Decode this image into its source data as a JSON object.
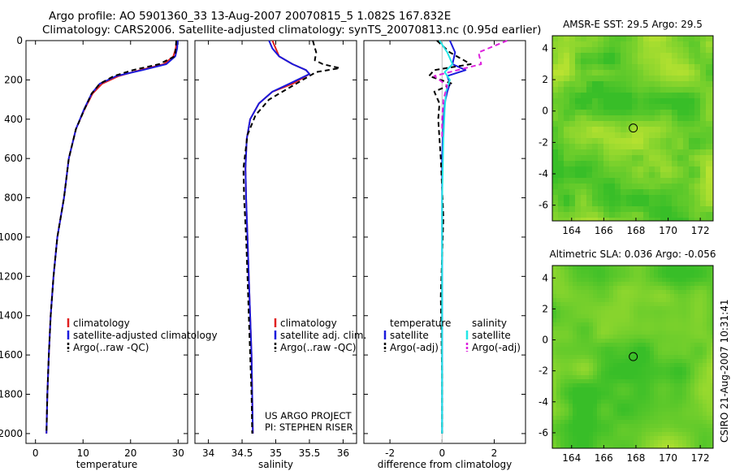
{
  "header": {
    "line1": "Argo profile: AO 5901360_33 13-Aug-2007 20070815_5 1.082S 167.832E",
    "line2": "Climatology: CARS2006. Satellite-adjusted climatology: synTS_20070813.nc (0.95d earlier)"
  },
  "footer": {
    "credit": "CSIRO 21-Aug-2007 10:31:41"
  },
  "colors": {
    "climatology": "#e02020",
    "satellite": "#1a1adc",
    "argo": "#000000",
    "salinity_satellite": "#22e6e6",
    "salinity_argo": "#dd22dd",
    "map_base": "#4fcf2e"
  },
  "chart_data": [
    {
      "type": "line",
      "id": "temperature",
      "xlabel": "temperature",
      "ylabel": "",
      "xlim": [
        -2,
        32
      ],
      "ylim": [
        2050,
        0
      ],
      "xticks": [
        0,
        10,
        20,
        30
      ],
      "yticks": [
        0,
        200,
        400,
        600,
        800,
        1000,
        1200,
        1400,
        1600,
        1800,
        2000
      ],
      "legend": [
        "climatology",
        "satellite-adjusted climatology",
        "Argo(..raw -QC)"
      ],
      "series": [
        {
          "name": "climatology",
          "x": [
            29.7,
            29.5,
            29.0,
            27.0,
            22.0,
            17.5,
            14.0,
            12.0,
            10.3,
            8.5,
            7.0,
            6.0,
            4.6,
            3.8,
            3.2,
            2.8,
            2.5,
            2.3
          ],
          "y": [
            0,
            40,
            80,
            120,
            150,
            180,
            220,
            270,
            350,
            450,
            600,
            800,
            1000,
            1200,
            1400,
            1600,
            1800,
            2000
          ]
        },
        {
          "name": "satellite-adjusted climatology",
          "x": [
            29.9,
            29.8,
            29.4,
            27.5,
            22.5,
            17.0,
            13.5,
            11.8,
            10.2,
            8.5,
            7.0,
            6.0,
            4.6,
            3.8,
            3.2,
            2.8,
            2.5,
            2.3
          ],
          "y": [
            0,
            40,
            80,
            120,
            150,
            180,
            220,
            270,
            350,
            450,
            600,
            800,
            1000,
            1200,
            1400,
            1600,
            1800,
            2000
          ]
        },
        {
          "name": "Argo(..raw -QC)",
          "x": [
            29.6,
            29.5,
            29.3,
            26.0,
            20.5,
            16.5,
            13.5,
            11.8,
            10.3,
            8.5,
            7.0,
            6.0,
            4.6,
            3.8,
            3.2,
            2.8,
            2.5,
            2.3
          ],
          "y": [
            0,
            40,
            80,
            120,
            150,
            180,
            220,
            270,
            350,
            450,
            600,
            800,
            1000,
            1200,
            1400,
            1600,
            1800,
            2000
          ]
        }
      ]
    },
    {
      "type": "line",
      "id": "salinity",
      "xlabel": "salinity",
      "xlim": [
        33.8,
        36.2
      ],
      "ylim": [
        2050,
        0
      ],
      "xticks": [
        34,
        34.5,
        35,
        35.5,
        36
      ],
      "legend": [
        "climatology",
        "satellite adj. clim.",
        "Argo(..raw -QC)"
      ],
      "annotation": [
        "US ARGO PROJECT",
        "PI: STEPHEN RISER"
      ],
      "series": [
        {
          "name": "climatology",
          "x": [
            34.95,
            35.0,
            35.05,
            35.25,
            35.45,
            35.5,
            35.25,
            34.95,
            34.75,
            34.62,
            34.57,
            34.55,
            34.56,
            34.58,
            34.6,
            34.62,
            34.64,
            34.65,
            34.66
          ],
          "y": [
            0,
            40,
            80,
            120,
            150,
            170,
            220,
            260,
            320,
            400,
            500,
            650,
            800,
            1000,
            1200,
            1400,
            1600,
            1800,
            2000
          ]
        },
        {
          "name": "satellite adj. clim.",
          "x": [
            34.9,
            34.95,
            35.05,
            35.25,
            35.45,
            35.5,
            35.2,
            34.95,
            34.75,
            34.62,
            34.57,
            34.55,
            34.56,
            34.58,
            34.6,
            34.62,
            34.64,
            34.65,
            34.66
          ],
          "y": [
            0,
            40,
            80,
            120,
            150,
            170,
            220,
            260,
            320,
            400,
            500,
            650,
            800,
            1000,
            1200,
            1400,
            1600,
            1800,
            2000
          ]
        },
        {
          "name": "Argo(..raw -QC)",
          "x": [
            35.55,
            35.6,
            35.58,
            35.7,
            35.95,
            35.6,
            35.45,
            35.15,
            34.9,
            34.7,
            34.58,
            34.52,
            34.53,
            34.56,
            34.58,
            34.6,
            34.62,
            34.64,
            34.65
          ],
          "y": [
            0,
            60,
            100,
            120,
            140,
            160,
            190,
            250,
            300,
            380,
            480,
            650,
            800,
            1000,
            1200,
            1400,
            1600,
            1800,
            2000
          ]
        }
      ]
    },
    {
      "type": "line",
      "id": "difference",
      "xlabel": "difference from climatology",
      "xlim": [
        -3,
        3.2
      ],
      "ylim": [
        2050,
        0
      ],
      "xticks": [
        -2,
        0,
        2
      ],
      "legend": [
        "temperature",
        "satellite",
        "Argo(-adj)",
        "salinity",
        "satellite",
        "Argo(-adj)"
      ],
      "series": [
        {
          "name": "satellite",
          "group": "temperature",
          "x": [
            0.3,
            0.5,
            0.4,
            0.9,
            0.2,
            0.3,
            0.2,
            0.1,
            0.05,
            0.0,
            0.0,
            0.0,
            0.0,
            0.0
          ],
          "y": [
            0,
            60,
            120,
            150,
            180,
            220,
            260,
            320,
            400,
            600,
            900,
            1300,
            1700,
            2000
          ]
        },
        {
          "name": "Argo(-adj)",
          "group": "temperature",
          "x": [
            -0.2,
            0.3,
            1.1,
            -0.3,
            -0.5,
            0.4,
            -0.3,
            -0.1,
            -0.15,
            -0.05,
            0.05,
            -0.05,
            0.0,
            0.0
          ],
          "y": [
            0,
            60,
            120,
            150,
            180,
            220,
            260,
            320,
            400,
            600,
            900,
            1300,
            1700,
            2000
          ]
        },
        {
          "name": "satellite",
          "group": "salinity",
          "x": [
            -0.1,
            0.2,
            0.4,
            0.1,
            0.3,
            0.15,
            0.1,
            0.05,
            0.0,
            0.0,
            0.0,
            0.0
          ],
          "y": [
            0,
            60,
            120,
            160,
            200,
            260,
            350,
            500,
            800,
            1200,
            1600,
            2000
          ]
        },
        {
          "name": "Argo(-adj)",
          "group": "salinity",
          "x": [
            2.5,
            1.4,
            1.5,
            0.6,
            -0.3,
            0.2,
            0.05,
            0.0,
            0.0
          ],
          "y": [
            0,
            60,
            120,
            150,
            180,
            230,
            300,
            400,
            500
          ]
        }
      ]
    },
    {
      "type": "heatmap",
      "id": "sst-map",
      "title": "AMSR-E SST: 29.5 Argo: 29.5",
      "xlim": [
        162.8,
        172.8
      ],
      "ylim": [
        -7,
        4.8
      ],
      "xticks": [
        164,
        166,
        168,
        170,
        172
      ],
      "yticks": [
        -6,
        -4,
        -2,
        0,
        2,
        4
      ],
      "marker": {
        "lon": 167.832,
        "lat": -1.082
      }
    },
    {
      "type": "heatmap",
      "id": "sla-map",
      "title": "Altimetric SLA: 0.036 Argo: -0.056",
      "xlim": [
        162.8,
        172.8
      ],
      "ylim": [
        -7,
        4.8
      ],
      "xticks": [
        164,
        166,
        168,
        170,
        172
      ],
      "yticks": [
        -6,
        -4,
        -2,
        0,
        2,
        4
      ],
      "marker": {
        "lon": 167.832,
        "lat": -1.082
      }
    }
  ]
}
